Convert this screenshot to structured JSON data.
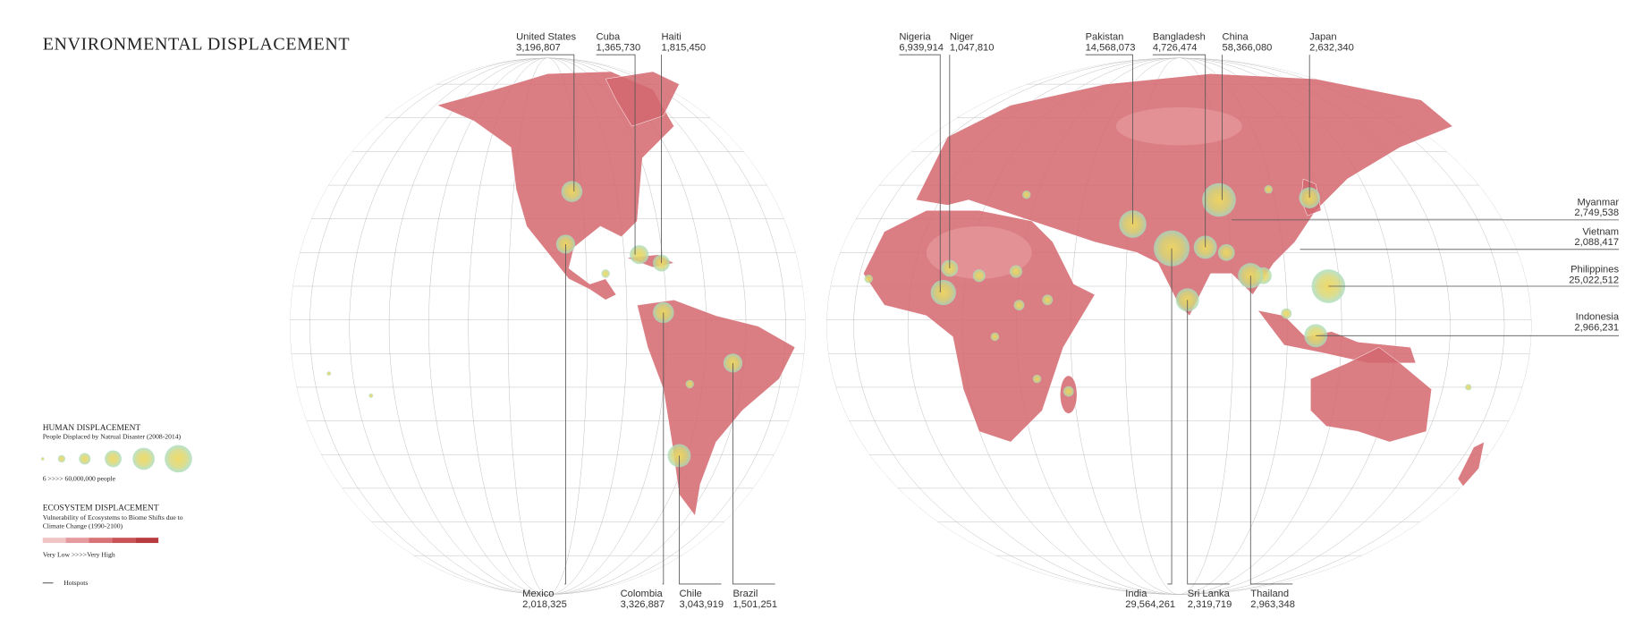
{
  "header": {
    "title": "ENVIRONMENTAL DISPLACEMENT"
  },
  "legend": {
    "human": {
      "title": "HUMAN DISPLACEMENT",
      "subtitle": "People Displaced by Natrual Disaster (2008-2014)",
      "range": "6 >>>> 60,000,000 people"
    },
    "ecosystem": {
      "title": "ECOSYSTEM  DISPLACEMENT",
      "subtitle_lines": [
        "Vulnerability of  Ecosystems to Biome Shifts due to",
        "Climate Change (1990-2100)"
      ],
      "range": "Very Low >>>>Very High"
    },
    "hotspots": "Hotspots"
  },
  "callouts": [
    {
      "name": "United States",
      "value": "3,196,807"
    },
    {
      "name": "Cuba",
      "value": "1,365,730"
    },
    {
      "name": "Haiti",
      "value": "1,815,450"
    },
    {
      "name": "Nigeria",
      "value": "6,939,914"
    },
    {
      "name": "Niger",
      "value": "1,047,810"
    },
    {
      "name": "Pakistan",
      "value": "14,568,073"
    },
    {
      "name": "Bangladesh",
      "value": "4,726,474"
    },
    {
      "name": "China",
      "value": "58,366,080"
    },
    {
      "name": "Japan",
      "value": "2,632,340"
    },
    {
      "name": "Myanmar",
      "value": "2,749,538"
    },
    {
      "name": "Vietnam",
      "value": "2,088,417"
    },
    {
      "name": "Philippines",
      "value": "25,022,512"
    },
    {
      "name": "Indonesia",
      "value": "2,966,231"
    },
    {
      "name": "Mexico",
      "value": "2,018,325"
    },
    {
      "name": "Colombia",
      "value": "3,326,887"
    },
    {
      "name": "Chile",
      "value": "3,043,919"
    },
    {
      "name": "Brazil",
      "value": "1,501,251"
    },
    {
      "name": "India",
      "value": "29,564,261"
    },
    {
      "name": "Sri Lanka",
      "value": "2,319,719"
    },
    {
      "name": "Thailand",
      "value": "2,963,348"
    }
  ]
}
